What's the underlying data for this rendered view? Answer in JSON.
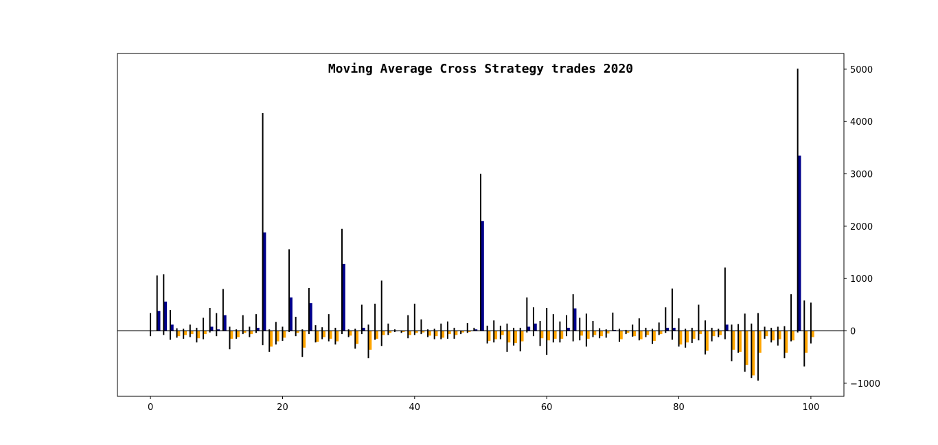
{
  "chart_data": {
    "type": "bar",
    "title": "Moving Average Cross Strategy trades 2020",
    "xlabel": "",
    "ylabel": "",
    "xlim": [
      -5,
      105
    ],
    "ylim": [
      -1250,
      5300
    ],
    "x_ticks": [
      0,
      20,
      40,
      60,
      80,
      100
    ],
    "y_ticks": [
      -1000,
      0,
      1000,
      2000,
      3000,
      4000,
      5000
    ],
    "y_axis_side": "right",
    "grid": false,
    "legend": "none",
    "colors": {
      "profit": "#00008b",
      "loss": "#ffa500",
      "range": "#000000",
      "zero_line": "#000000"
    },
    "trades": [
      {
        "x": 0,
        "pnl": 0,
        "high": 340,
        "low": -100
      },
      {
        "x": 1,
        "pnl": 380,
        "high": 1060,
        "low": 0
      },
      {
        "x": 2,
        "pnl": 560,
        "high": 1080,
        "low": -80
      },
      {
        "x": 3,
        "pnl": 120,
        "high": 400,
        "low": -170
      },
      {
        "x": 4,
        "pnl": -100,
        "high": 50,
        "low": -130
      },
      {
        "x": 5,
        "pnl": -80,
        "high": 40,
        "low": -150
      },
      {
        "x": 6,
        "pnl": -60,
        "high": 120,
        "low": -120
      },
      {
        "x": 7,
        "pnl": -140,
        "high": 60,
        "low": -220
      },
      {
        "x": 8,
        "pnl": -60,
        "high": 250,
        "low": -160
      },
      {
        "x": 9,
        "pnl": 80,
        "high": 440,
        "low": -30
      },
      {
        "x": 10,
        "pnl": 30,
        "high": 340,
        "low": -100
      },
      {
        "x": 11,
        "pnl": 300,
        "high": 800,
        "low": 0
      },
      {
        "x": 12,
        "pnl": -150,
        "high": 80,
        "low": -350
      },
      {
        "x": 13,
        "pnl": -120,
        "high": 30,
        "low": -150
      },
      {
        "x": 14,
        "pnl": -40,
        "high": 300,
        "low": -60
      },
      {
        "x": 15,
        "pnl": -60,
        "high": 80,
        "low": -120
      },
      {
        "x": 16,
        "pnl": 60,
        "high": 320,
        "low": -40
      },
      {
        "x": 17,
        "pnl": 1880,
        "high": 4160,
        "low": -270
      },
      {
        "x": 18,
        "pnl": -300,
        "high": 30,
        "low": -400
      },
      {
        "x": 19,
        "pnl": -200,
        "high": 170,
        "low": -260
      },
      {
        "x": 20,
        "pnl": -130,
        "high": 80,
        "low": -190
      },
      {
        "x": 21,
        "pnl": 640,
        "high": 1560,
        "low": -20
      },
      {
        "x": 22,
        "pnl": -40,
        "high": 270,
        "low": -100
      },
      {
        "x": 23,
        "pnl": -320,
        "high": 30,
        "low": -500
      },
      {
        "x": 24,
        "pnl": 530,
        "high": 820,
        "low": -60
      },
      {
        "x": 25,
        "pnl": -210,
        "high": 110,
        "low": -220
      },
      {
        "x": 26,
        "pnl": -120,
        "high": 70,
        "low": -160
      },
      {
        "x": 27,
        "pnl": -150,
        "high": 320,
        "low": -200
      },
      {
        "x": 28,
        "pnl": -200,
        "high": 60,
        "low": -260
      },
      {
        "x": 29,
        "pnl": 1280,
        "high": 1950,
        "low": -60
      },
      {
        "x": 30,
        "pnl": -90,
        "high": 30,
        "low": -120
      },
      {
        "x": 31,
        "pnl": -250,
        "high": 40,
        "low": -340
      },
      {
        "x": 32,
        "pnl": 60,
        "high": 500,
        "low": -60
      },
      {
        "x": 33,
        "pnl": -360,
        "high": 120,
        "low": -520
      },
      {
        "x": 34,
        "pnl": -150,
        "high": 520,
        "low": -170
      },
      {
        "x": 35,
        "pnl": -80,
        "high": 960,
        "low": -290
      },
      {
        "x": 36,
        "pnl": -40,
        "high": 140,
        "low": -80
      },
      {
        "x": 37,
        "pnl": 0,
        "high": 30,
        "low": -20
      },
      {
        "x": 38,
        "pnl": -20,
        "high": 10,
        "low": -40
      },
      {
        "x": 39,
        "pnl": -80,
        "high": 300,
        "low": -140
      },
      {
        "x": 40,
        "pnl": -40,
        "high": 520,
        "low": -80
      },
      {
        "x": 41,
        "pnl": -30,
        "high": 220,
        "low": -60
      },
      {
        "x": 42,
        "pnl": -90,
        "high": 30,
        "low": -120
      },
      {
        "x": 43,
        "pnl": -100,
        "high": 40,
        "low": -160
      },
      {
        "x": 44,
        "pnl": -130,
        "high": 140,
        "low": -160
      },
      {
        "x": 45,
        "pnl": -60,
        "high": 180,
        "low": -150
      },
      {
        "x": 46,
        "pnl": -80,
        "high": 60,
        "low": -150
      },
      {
        "x": 47,
        "pnl": -30,
        "high": 10,
        "low": -60
      },
      {
        "x": 48,
        "pnl": -20,
        "high": 150,
        "low": -40
      },
      {
        "x": 49,
        "pnl": 30,
        "high": 60,
        "low": 0
      },
      {
        "x": 50,
        "pnl": 2100,
        "high": 3000,
        "low": 0
      },
      {
        "x": 51,
        "pnl": -190,
        "high": 100,
        "low": -240
      },
      {
        "x": 52,
        "pnl": -160,
        "high": 200,
        "low": -220
      },
      {
        "x": 53,
        "pnl": -80,
        "high": 100,
        "low": -160
      },
      {
        "x": 54,
        "pnl": -220,
        "high": 140,
        "low": -400
      },
      {
        "x": 55,
        "pnl": -230,
        "high": 60,
        "low": -280
      },
      {
        "x": 56,
        "pnl": -200,
        "high": 60,
        "low": -390
      },
      {
        "x": 57,
        "pnl": 80,
        "high": 640,
        "low": -30
      },
      {
        "x": 58,
        "pnl": 140,
        "high": 450,
        "low": -100
      },
      {
        "x": 59,
        "pnl": -140,
        "high": 190,
        "low": -290
      },
      {
        "x": 60,
        "pnl": -180,
        "high": 440,
        "low": -460
      },
      {
        "x": 61,
        "pnl": -150,
        "high": 320,
        "low": -220
      },
      {
        "x": 62,
        "pnl": -150,
        "high": 180,
        "low": -220
      },
      {
        "x": 63,
        "pnl": 60,
        "high": 300,
        "low": -100
      },
      {
        "x": 64,
        "pnl": 430,
        "high": 700,
        "low": -200
      },
      {
        "x": 65,
        "pnl": -90,
        "high": 250,
        "low": -180
      },
      {
        "x": 66,
        "pnl": -150,
        "high": 330,
        "low": -300
      },
      {
        "x": 67,
        "pnl": -80,
        "high": 190,
        "low": -120
      },
      {
        "x": 68,
        "pnl": -100,
        "high": 50,
        "low": -140
      },
      {
        "x": 69,
        "pnl": -50,
        "high": 30,
        "low": -130
      },
      {
        "x": 70,
        "pnl": 20,
        "high": 350,
        "low": 0
      },
      {
        "x": 71,
        "pnl": -160,
        "high": 40,
        "low": -210
      },
      {
        "x": 72,
        "pnl": -40,
        "high": 20,
        "low": -60
      },
      {
        "x": 73,
        "pnl": -100,
        "high": 120,
        "low": -110
      },
      {
        "x": 74,
        "pnl": -160,
        "high": 240,
        "low": -180
      },
      {
        "x": 75,
        "pnl": -80,
        "high": 60,
        "low": -120
      },
      {
        "x": 76,
        "pnl": -190,
        "high": 40,
        "low": -250
      },
      {
        "x": 77,
        "pnl": -60,
        "high": 160,
        "low": -80
      },
      {
        "x": 78,
        "pnl": 60,
        "high": 450,
        "low": -40
      },
      {
        "x": 79,
        "pnl": 60,
        "high": 810,
        "low": -170
      },
      {
        "x": 80,
        "pnl": -260,
        "high": 240,
        "low": -300
      },
      {
        "x": 81,
        "pnl": -220,
        "high": 40,
        "low": -320
      },
      {
        "x": 82,
        "pnl": -150,
        "high": 60,
        "low": -230
      },
      {
        "x": 83,
        "pnl": -60,
        "high": 500,
        "low": -180
      },
      {
        "x": 84,
        "pnl": -380,
        "high": 200,
        "low": -450
      },
      {
        "x": 85,
        "pnl": -100,
        "high": 60,
        "low": -200
      },
      {
        "x": 86,
        "pnl": -80,
        "high": 40,
        "low": -120
      },
      {
        "x": 87,
        "pnl": 120,
        "high": 1210,
        "low": -160
      },
      {
        "x": 88,
        "pnl": -360,
        "high": 120,
        "low": -580
      },
      {
        "x": 89,
        "pnl": -400,
        "high": 130,
        "low": -420
      },
      {
        "x": 90,
        "pnl": -650,
        "high": 330,
        "low": -780
      },
      {
        "x": 91,
        "pnl": -850,
        "high": 140,
        "low": -900
      },
      {
        "x": 92,
        "pnl": -420,
        "high": 340,
        "low": -950
      },
      {
        "x": 93,
        "pnl": -100,
        "high": 80,
        "low": -150
      },
      {
        "x": 94,
        "pnl": -180,
        "high": 60,
        "low": -220
      },
      {
        "x": 95,
        "pnl": -160,
        "high": 80,
        "low": -280
      },
      {
        "x": 96,
        "pnl": -420,
        "high": 90,
        "low": -520
      },
      {
        "x": 97,
        "pnl": -180,
        "high": 700,
        "low": -200
      },
      {
        "x": 98,
        "pnl": 3350,
        "high": 5010,
        "low": -30
      },
      {
        "x": 99,
        "pnl": -420,
        "high": 580,
        "low": -680
      },
      {
        "x": 100,
        "pnl": -120,
        "high": 540,
        "low": -240
      }
    ]
  }
}
